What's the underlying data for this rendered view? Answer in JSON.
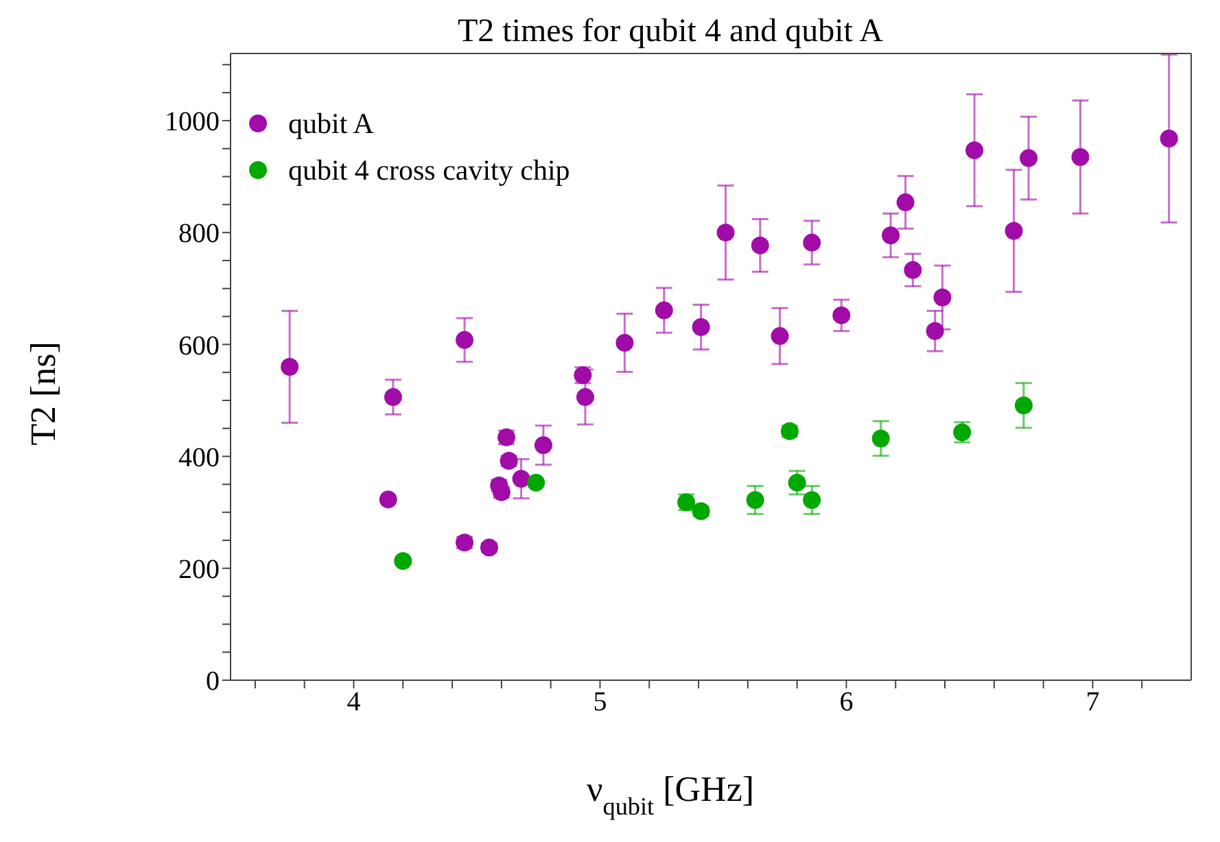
{
  "chart_data": {
    "type": "scatter",
    "title": "T2 times for qubit 4 and qubit A",
    "xlabel": "ν$_{qubit}$ [GHz]",
    "ylabel": "T2 [ns]",
    "xlim": [
      3.5,
      7.4
    ],
    "xticks": [
      {
        "value": 3.6,
        "label": null
      },
      {
        "value": 3.8,
        "label": null
      },
      4,
      {
        "value": 4.2,
        "label": null
      },
      {
        "value": 4.4,
        "label": null
      },
      {
        "value": 4.6,
        "label": null
      },
      {
        "value": 4.8,
        "label": null
      },
      5,
      {
        "value": 5.2,
        "label": null
      },
      {
        "value": 5.4,
        "label": null
      },
      {
        "value": 5.6,
        "label": null
      },
      {
        "value": 5.8,
        "label": null
      },
      6,
      {
        "value": 6.2,
        "label": null
      },
      {
        "value": 6.4,
        "label": null
      },
      {
        "value": 6.6,
        "label": null
      },
      {
        "value": 6.8,
        "label": null
      },
      7,
      {
        "value": 7.2,
        "label": null
      }
    ],
    "ylim": [
      0,
      1120
    ],
    "yticks": [
      0,
      {
        "value": 50,
        "label": null
      },
      {
        "value": 100,
        "label": null
      },
      {
        "value": 150,
        "label": null
      },
      200,
      {
        "value": 250,
        "label": null
      },
      {
        "value": 300,
        "label": null
      },
      {
        "value": 350,
        "label": null
      },
      400,
      {
        "value": 450,
        "label": null
      },
      {
        "value": 500,
        "label": null
      },
      {
        "value": 550,
        "label": null
      },
      600,
      {
        "value": 650,
        "label": null
      },
      {
        "value": 700,
        "label": null
      },
      {
        "value": 750,
        "label": null
      },
      800,
      {
        "value": 850,
        "label": null
      },
      {
        "value": 900,
        "label": null
      },
      {
        "value": 950,
        "label": null
      },
      1000,
      {
        "value": 1050,
        "label": null
      },
      {
        "value": 1100,
        "label": null
      }
    ],
    "legend": "top left",
    "marker": "circle",
    "series": [
      {
        "name": "qubit A",
        "color": "#a10ba8",
        "x": [
          3.74,
          4.16,
          4.14,
          4.45,
          4.45,
          4.55,
          4.62,
          4.63,
          4.59,
          4.6,
          4.68,
          4.77,
          4.93,
          4.94,
          5.1,
          5.26,
          5.41,
          5.51,
          5.65,
          5.73,
          5.86,
          5.98,
          6.18,
          6.24,
          6.27,
          6.36,
          6.39,
          6.52,
          6.68,
          6.74,
          6.95,
          7.31
        ],
        "values": [
          560,
          506,
          323,
          608,
          246,
          237,
          434,
          392,
          348,
          336,
          360,
          420,
          545,
          506,
          603,
          661,
          631,
          800,
          777,
          615,
          782,
          652,
          795,
          854,
          733,
          624,
          684,
          947,
          803,
          933,
          935,
          968
        ],
        "errors": [
          100,
          31,
          null,
          39,
          10,
          8,
          12,
          9,
          10,
          10,
          35,
          35,
          14,
          49,
          52,
          40,
          40,
          84,
          47,
          50,
          39,
          28,
          39,
          47,
          29,
          36,
          57,
          100,
          109,
          74,
          101,
          150
        ]
      },
      {
        "name": "qubit 4 cross cavity chip",
        "color": "#00a800",
        "x": [
          4.2,
          4.74,
          5.35,
          5.41,
          5.63,
          5.77,
          5.8,
          5.86,
          6.14,
          6.47,
          6.72
        ],
        "values": [
          213,
          353,
          318,
          302,
          322,
          445,
          353,
          322,
          432,
          443,
          491
        ],
        "errors": [
          null,
          null,
          14,
          8,
          25,
          10,
          21,
          25,
          31,
          18,
          40
        ]
      }
    ]
  }
}
